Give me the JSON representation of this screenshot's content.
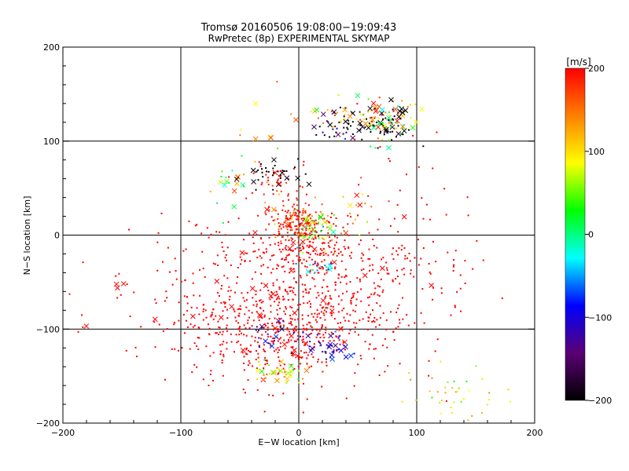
{
  "chart_data": [
    {
      "type": "scatter",
      "title": "Tromsø 20160506 19:08:00−19:09:43",
      "subtitle": "RwPretec (8p) EXPERIMENTAL SKYMAP",
      "xlabel": "E−W location [km]",
      "ylabel": "N−S location [km]",
      "xlim": [
        -200,
        200
      ],
      "ylim": [
        -200,
        200
      ],
      "xticks": [
        "−200",
        "−100",
        "0",
        "100",
        "200"
      ],
      "yticks": [
        "−200",
        "−100",
        "0",
        "100",
        "200"
      ],
      "grid": true,
      "grid_lines": [
        -100,
        0,
        100
      ],
      "colorbar": {
        "label": "[m/s]",
        "range": [
          -200,
          200
        ],
        "ticks": [
          "200",
          "100",
          "0",
          "−100",
          "−200"
        ],
        "colormap": [
          "#000000",
          "#5a0074",
          "#0000ff",
          "#00ffff",
          "#00ff00",
          "#ffff00",
          "#ff8000",
          "#ff0000"
        ]
      },
      "markers": {
        "small_point": "speed sample",
        "cross": "speed sample (strong)"
      },
      "clusters": [
        {
          "x": 0,
          "y": -70,
          "sx": 55,
          "sy": 45,
          "n": 520,
          "v": 200,
          "vs": 0,
          "cross": 0.03
        },
        {
          "x": 0,
          "y": 15,
          "sx": 15,
          "sy": 10,
          "n": 180,
          "v": 200,
          "vs": 40,
          "cross": 0.05
        },
        {
          "x": 12,
          "y": 5,
          "sx": 10,
          "sy": 10,
          "n": 70,
          "v": 60,
          "vs": 60,
          "cross": 0.08
        },
        {
          "x": 5,
          "y": -15,
          "sx": 20,
          "sy": 10,
          "n": 120,
          "v": 200,
          "vs": 0,
          "cross": 0.02
        },
        {
          "x": -15,
          "y": -95,
          "sx": 35,
          "sy": 18,
          "n": 140,
          "v": 200,
          "vs": 0,
          "cross": 0.04
        },
        {
          "x": -35,
          "y": -120,
          "sx": 35,
          "sy": 15,
          "n": 110,
          "v": 200,
          "vs": 0,
          "cross": 0.04
        },
        {
          "x": 25,
          "y": -118,
          "sx": 10,
          "sy": 8,
          "n": 40,
          "v": -110,
          "vs": 30,
          "cross": 0.35
        },
        {
          "x": -20,
          "y": -105,
          "sx": 10,
          "sy": 6,
          "n": 22,
          "v": -120,
          "vs": 30,
          "cross": 0.3
        },
        {
          "x": -15,
          "y": -145,
          "sx": 12,
          "sy": 6,
          "n": 45,
          "v": 100,
          "vs": 40,
          "cross": 0.25
        },
        {
          "x": 20,
          "y": -35,
          "sx": 8,
          "sy": 5,
          "n": 18,
          "v": -50,
          "vs": 20,
          "cross": 0.2
        },
        {
          "x": -20,
          "y": 65,
          "sx": 10,
          "sy": 8,
          "n": 35,
          "v": -200,
          "vs": 10,
          "cross": 0.45
        },
        {
          "x": -12,
          "y": 55,
          "sx": 12,
          "sy": 10,
          "n": 35,
          "v": 200,
          "vs": 20,
          "cross": 0.2
        },
        {
          "x": 45,
          "y": 115,
          "sx": 15,
          "sy": 8,
          "n": 60,
          "v": -190,
          "vs": 40,
          "cross": 0.2
        },
        {
          "x": 60,
          "y": 125,
          "sx": 22,
          "sy": 10,
          "n": 80,
          "v": 130,
          "vs": 60,
          "cross": 0.3
        },
        {
          "x": 80,
          "y": 120,
          "sx": 12,
          "sy": 10,
          "n": 40,
          "v": -200,
          "vs": 10,
          "cross": 0.4
        },
        {
          "x": 78,
          "y": 115,
          "sx": 10,
          "sy": 8,
          "n": 20,
          "v": 20,
          "vs": 20,
          "cross": 0.4
        },
        {
          "x": -60,
          "y": 55,
          "sx": 10,
          "sy": 15,
          "n": 22,
          "v": 60,
          "vs": 100,
          "cross": 0.4
        },
        {
          "x": 50,
          "y": 20,
          "sx": 15,
          "sy": 15,
          "n": 25,
          "v": 150,
          "vs": 60,
          "cross": 0.2
        },
        {
          "x": 130,
          "y": -175,
          "sx": 25,
          "sy": 18,
          "n": 40,
          "v": 90,
          "vs": 30,
          "cross": 0.05
        },
        {
          "x": 60,
          "y": -60,
          "sx": 30,
          "sy": 35,
          "n": 80,
          "v": 200,
          "vs": 0,
          "cross": 0.03
        },
        {
          "x": -80,
          "y": -60,
          "sx": 25,
          "sy": 40,
          "n": 60,
          "v": 200,
          "vs": 0,
          "cross": 0.03
        },
        {
          "x": 100,
          "y": -30,
          "sx": 30,
          "sy": 30,
          "n": 40,
          "v": 200,
          "vs": 0,
          "cross": 0.03
        },
        {
          "x": 110,
          "y": 50,
          "sx": 30,
          "sy": 25,
          "n": 15,
          "v": 200,
          "vs": 0,
          "cross": 0.1
        },
        {
          "x": -150,
          "y": -80,
          "sx": 30,
          "sy": 20,
          "n": 15,
          "v": 200,
          "vs": 0,
          "cross": 0.3
        },
        {
          "x": -30,
          "y": 115,
          "sx": 15,
          "sy": 20,
          "n": 12,
          "v": 120,
          "vs": 60,
          "cross": 0.4
        }
      ]
    }
  ]
}
